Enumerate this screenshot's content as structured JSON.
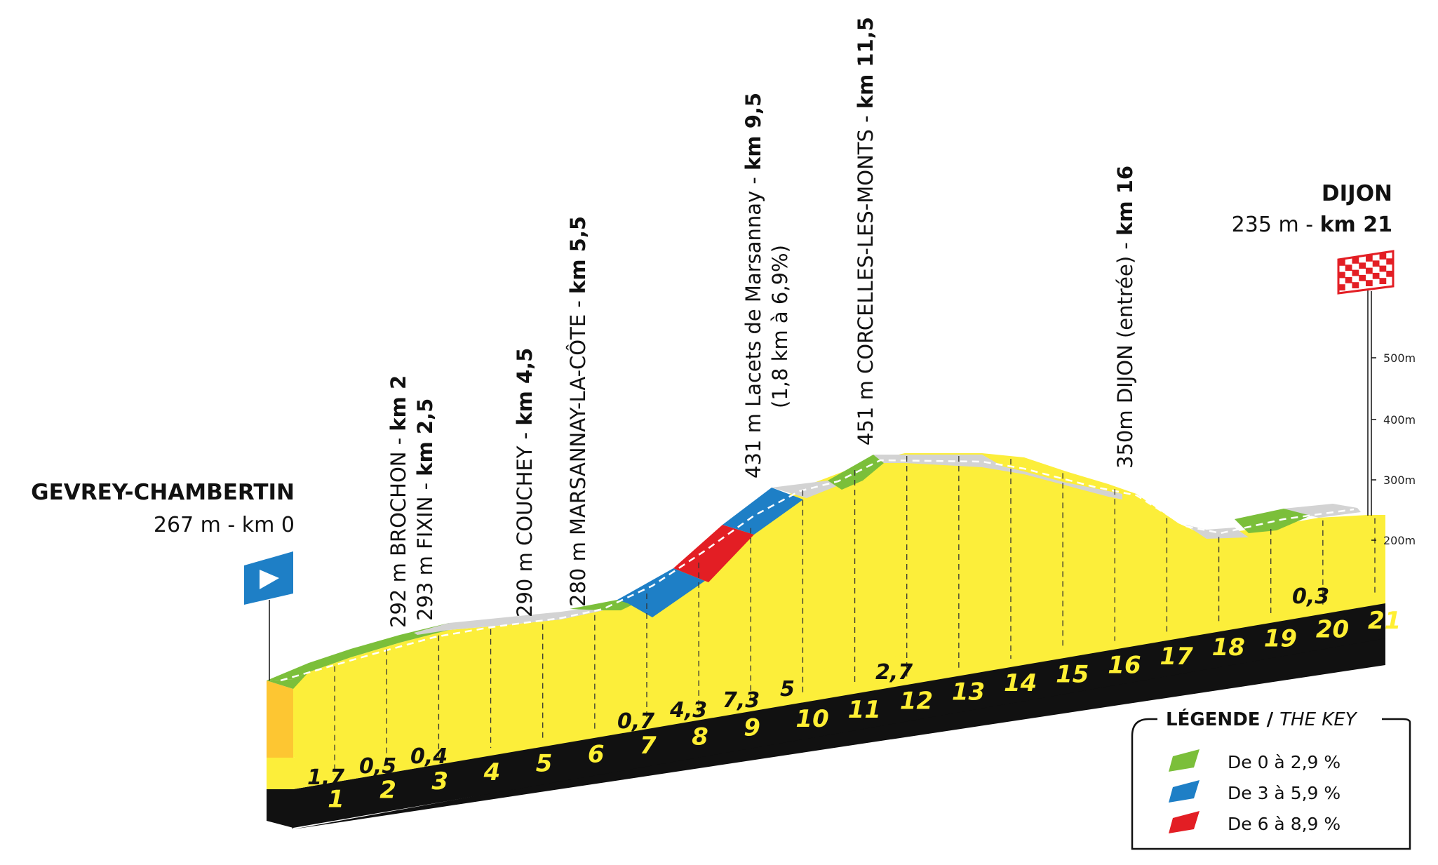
{
  "start": {
    "name": "GEVREY-CHAMBERTIN",
    "info": "267 m - km 0"
  },
  "finish": {
    "name": "DIJON",
    "info_plain": "235 m - ",
    "info_bold": "km 21"
  },
  "altitude_scale": [
    "500m",
    "400m",
    "300m",
    "200m"
  ],
  "waypoints": [
    {
      "plain": "292 m BROCHON - ",
      "bold": "km 2"
    },
    {
      "plain": "293 m FIXIN - ",
      "bold": "km 2,5"
    },
    {
      "plain": "290 m COUCHEY - ",
      "bold": "km 4,5"
    },
    {
      "plain": "280 m MARSANNAY-LA-CÔTE - ",
      "bold": "km 5,5"
    },
    {
      "plain": "431 m Lacets de Marsannay - ",
      "bold": "km 9,5",
      "sub": "(1,8 km à 6,9%)"
    },
    {
      "plain": "451 m CORCELLES-LES-MONTS - ",
      "bold": "km 11,5"
    },
    {
      "plain": "350m DIJON (entrée) - ",
      "bold": "km 16"
    }
  ],
  "km_markers": [
    "1",
    "2",
    "3",
    "4",
    "5",
    "6",
    "7",
    "8",
    "9",
    "10",
    "11",
    "12",
    "13",
    "14",
    "15",
    "16",
    "17",
    "18",
    "19",
    "20",
    "21"
  ],
  "gradients": [
    "1,7",
    "0,5",
    "0,4",
    "0,7",
    "4,3",
    "7,3",
    "5",
    "2,7",
    "0,3"
  ],
  "legend": {
    "title_bold": "LÉGENDE / ",
    "title_italic": "THE KEY",
    "items": [
      {
        "label": "De 0 à 2,9 %",
        "color": "#7bbf3a"
      },
      {
        "label": "De 3 à 5,9 %",
        "color": "#1e7fc6"
      },
      {
        "label": "De 6 à 8,9 %",
        "color": "#e31e24"
      }
    ]
  },
  "colors": {
    "profile": "#fcee3a",
    "profile_side": "#fdc632",
    "base": "#111111",
    "road_flat": "#d3d3d3",
    "green": "#7bbf3a",
    "blue": "#1e7fc6",
    "red": "#e31e24"
  }
}
